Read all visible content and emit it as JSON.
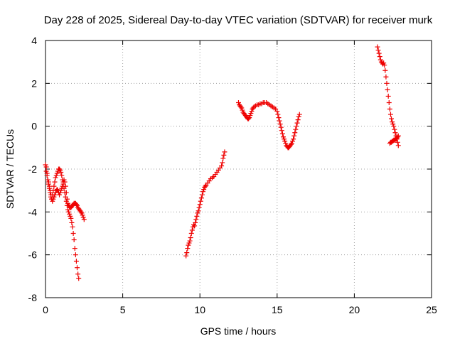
{
  "chart_data": {
    "type": "scatter",
    "title": "Day 228 of 2025, Sidereal Day-to-day VTEC variation (SDTVAR) for receiver murk",
    "xlabel": "GPS time / hours",
    "ylabel": "SDTVAR / TECUs",
    "xlim": [
      0,
      25
    ],
    "ylim": [
      -8,
      4
    ],
    "xticks": [
      "0",
      "5",
      "10",
      "15",
      "20",
      "25"
    ],
    "yticks": [
      "-8",
      "-6",
      "-4",
      "-2",
      "0",
      "2",
      "4"
    ],
    "grid": true,
    "marker": "plus",
    "color": "#ee0000",
    "segments": [
      [
        [
          0.0,
          -1.8
        ],
        [
          0.05,
          -1.9
        ],
        [
          0.1,
          -2.2
        ],
        [
          0.15,
          -2.5
        ],
        [
          0.2,
          -2.7
        ],
        [
          0.25,
          -2.9
        ],
        [
          0.3,
          -3.1
        ],
        [
          0.35,
          -3.3
        ],
        [
          0.4,
          -3.4
        ],
        [
          0.45,
          -3.2
        ],
        [
          0.5,
          -3.0
        ],
        [
          0.55,
          -2.8
        ],
        [
          0.6,
          -2.6
        ],
        [
          0.65,
          -2.4
        ],
        [
          0.7,
          -2.3
        ],
        [
          0.75,
          -2.2
        ],
        [
          0.8,
          -2.1
        ],
        [
          0.85,
          -2.0
        ],
        [
          0.9,
          -2.0
        ],
        [
          0.95,
          -2.05
        ],
        [
          1.0,
          -2.15
        ],
        [
          1.05,
          -2.3
        ],
        [
          1.1,
          -2.5
        ],
        [
          1.15,
          -2.7
        ],
        [
          1.2,
          -2.9
        ],
        [
          1.25,
          -3.1
        ],
        [
          1.3,
          -3.3
        ],
        [
          1.35,
          -3.5
        ],
        [
          1.4,
          -3.7
        ],
        [
          1.45,
          -3.9
        ],
        [
          1.5,
          -4.0
        ],
        [
          1.55,
          -4.1
        ],
        [
          1.6,
          -4.2
        ],
        [
          1.65,
          -4.3
        ],
        [
          1.7,
          -4.5
        ],
        [
          1.75,
          -4.7
        ],
        [
          1.8,
          -5.0
        ],
        [
          1.85,
          -5.3
        ],
        [
          1.9,
          -5.7
        ],
        [
          1.95,
          -6.0
        ],
        [
          2.0,
          -6.3
        ],
        [
          2.05,
          -6.6
        ],
        [
          2.1,
          -6.9
        ],
        [
          2.15,
          -7.1
        ]
      ],
      [
        [
          0.05,
          -2.1
        ],
        [
          0.1,
          -2.3
        ],
        [
          0.15,
          -2.5
        ],
        [
          0.2,
          -2.6
        ],
        [
          0.25,
          -2.8
        ],
        [
          0.3,
          -3.0
        ],
        [
          0.35,
          -3.2
        ],
        [
          0.4,
          -3.4
        ],
        [
          0.45,
          -3.5
        ],
        [
          0.5,
          -3.4
        ],
        [
          0.55,
          -3.3
        ],
        [
          0.6,
          -3.2
        ],
        [
          0.65,
          -3.1
        ],
        [
          0.7,
          -3.0
        ],
        [
          0.75,
          -2.95
        ],
        [
          0.8,
          -3.0
        ],
        [
          0.85,
          -3.1
        ],
        [
          0.9,
          -3.2
        ],
        [
          0.95,
          -3.1
        ],
        [
          1.0,
          -3.0
        ],
        [
          1.05,
          -2.9
        ],
        [
          1.1,
          -2.8
        ],
        [
          1.15,
          -2.6
        ],
        [
          1.2,
          -2.5
        ],
        [
          1.25,
          -2.6
        ],
        [
          1.3,
          -2.8
        ],
        [
          1.35,
          -3.1
        ],
        [
          1.4,
          -3.4
        ],
        [
          1.45,
          -3.6
        ],
        [
          1.5,
          -3.7
        ],
        [
          1.55,
          -3.75
        ],
        [
          1.6,
          -3.8
        ],
        [
          1.65,
          -3.8
        ],
        [
          1.7,
          -3.75
        ],
        [
          1.75,
          -3.7
        ],
        [
          1.8,
          -3.65
        ],
        [
          1.85,
          -3.6
        ],
        [
          1.9,
          -3.6
        ],
        [
          1.95,
          -3.6
        ],
        [
          2.0,
          -3.65
        ],
        [
          2.05,
          -3.7
        ],
        [
          2.1,
          -3.8
        ],
        [
          2.15,
          -3.85
        ],
        [
          2.2,
          -3.9
        ],
        [
          2.25,
          -3.95
        ],
        [
          2.3,
          -4.0
        ],
        [
          2.35,
          -4.05
        ],
        [
          2.4,
          -4.15
        ],
        [
          2.45,
          -4.25
        ],
        [
          2.5,
          -4.35
        ]
      ],
      [
        [
          9.1,
          -6.05
        ],
        [
          9.15,
          -5.9
        ],
        [
          9.2,
          -5.7
        ],
        [
          9.25,
          -5.55
        ],
        [
          9.3,
          -5.45
        ],
        [
          9.35,
          -5.35
        ],
        [
          9.4,
          -5.2
        ],
        [
          9.45,
          -5.0
        ],
        [
          9.5,
          -4.85
        ],
        [
          9.55,
          -4.7
        ],
        [
          9.6,
          -4.6
        ],
        [
          9.65,
          -4.65
        ],
        [
          9.7,
          -4.5
        ],
        [
          9.75,
          -4.35
        ],
        [
          9.8,
          -4.2
        ],
        [
          9.85,
          -4.05
        ],
        [
          9.9,
          -3.95
        ],
        [
          9.95,
          -3.8
        ],
        [
          10.0,
          -3.65
        ],
        [
          10.05,
          -3.5
        ],
        [
          10.1,
          -3.35
        ],
        [
          10.15,
          -3.2
        ],
        [
          10.2,
          -3.05
        ],
        [
          10.25,
          -2.95
        ],
        [
          10.3,
          -2.85
        ],
        [
          10.35,
          -2.8
        ],
        [
          10.4,
          -2.75
        ],
        [
          10.5,
          -2.65
        ],
        [
          10.6,
          -2.55
        ],
        [
          10.7,
          -2.45
        ],
        [
          10.8,
          -2.4
        ],
        [
          10.9,
          -2.35
        ],
        [
          11.0,
          -2.25
        ],
        [
          11.1,
          -2.15
        ],
        [
          11.2,
          -2.05
        ],
        [
          11.3,
          -1.95
        ],
        [
          11.4,
          -1.85
        ],
        [
          11.45,
          -1.7
        ],
        [
          11.5,
          -1.5
        ],
        [
          11.55,
          -1.35
        ],
        [
          11.6,
          -1.2
        ]
      ],
      [
        [
          12.5,
          1.1
        ],
        [
          12.55,
          1.0
        ],
        [
          12.6,
          0.95
        ],
        [
          12.65,
          0.9
        ],
        [
          12.7,
          0.85
        ],
        [
          12.75,
          0.75
        ],
        [
          12.8,
          0.65
        ],
        [
          12.85,
          0.6
        ],
        [
          12.9,
          0.55
        ],
        [
          12.95,
          0.5
        ],
        [
          13.0,
          0.45
        ],
        [
          13.05,
          0.4
        ],
        [
          13.1,
          0.35
        ],
        [
          13.15,
          0.35
        ],
        [
          13.2,
          0.4
        ],
        [
          13.25,
          0.5
        ],
        [
          13.3,
          0.6
        ],
        [
          13.35,
          0.7
        ],
        [
          13.4,
          0.8
        ],
        [
          13.45,
          0.85
        ],
        [
          13.5,
          0.9
        ],
        [
          13.6,
          0.95
        ],
        [
          13.7,
          1.0
        ],
        [
          13.8,
          1.0
        ],
        [
          13.9,
          1.05
        ],
        [
          14.0,
          1.05
        ],
        [
          14.1,
          1.1
        ],
        [
          14.2,
          1.1
        ],
        [
          14.3,
          1.1
        ],
        [
          14.4,
          1.05
        ],
        [
          14.5,
          1.0
        ],
        [
          14.6,
          0.95
        ],
        [
          14.7,
          0.9
        ],
        [
          14.8,
          0.85
        ],
        [
          14.9,
          0.8
        ],
        [
          15.0,
          0.7
        ],
        [
          15.05,
          0.55
        ],
        [
          15.1,
          0.4
        ],
        [
          15.15,
          0.25
        ],
        [
          15.2,
          0.1
        ],
        [
          15.25,
          -0.05
        ],
        [
          15.3,
          -0.2
        ],
        [
          15.35,
          -0.35
        ],
        [
          15.4,
          -0.5
        ],
        [
          15.45,
          -0.6
        ],
        [
          15.5,
          -0.7
        ],
        [
          15.55,
          -0.8
        ],
        [
          15.6,
          -0.9
        ],
        [
          15.65,
          -0.95
        ],
        [
          15.7,
          -1.0
        ],
        [
          15.75,
          -1.0
        ],
        [
          15.8,
          -0.95
        ],
        [
          15.85,
          -0.9
        ],
        [
          15.9,
          -0.85
        ],
        [
          15.95,
          -0.8
        ],
        [
          16.0,
          -0.7
        ],
        [
          16.05,
          -0.6
        ],
        [
          16.1,
          -0.45
        ],
        [
          16.15,
          -0.3
        ],
        [
          16.2,
          -0.15
        ],
        [
          16.25,
          0.0
        ],
        [
          16.3,
          0.15
        ],
        [
          16.35,
          0.3
        ],
        [
          16.4,
          0.45
        ],
        [
          16.45,
          0.55
        ]
      ],
      [
        [
          21.5,
          3.7
        ],
        [
          21.55,
          3.55
        ],
        [
          21.6,
          3.4
        ],
        [
          21.65,
          3.25
        ],
        [
          21.7,
          3.1
        ],
        [
          21.75,
          3.0
        ],
        [
          21.8,
          2.95
        ],
        [
          21.85,
          2.9
        ],
        [
          21.9,
          2.95
        ],
        [
          21.95,
          2.85
        ],
        [
          22.0,
          2.6
        ],
        [
          22.05,
          2.3
        ],
        [
          22.1,
          2.0
        ],
        [
          22.15,
          1.7
        ],
        [
          22.2,
          1.4
        ],
        [
          22.25,
          1.1
        ],
        [
          22.3,
          0.8
        ],
        [
          22.35,
          0.55
        ],
        [
          22.4,
          0.35
        ],
        [
          22.45,
          0.2
        ],
        [
          22.5,
          0.1
        ],
        [
          22.55,
          0.0
        ],
        [
          22.6,
          -0.15
        ],
        [
          22.65,
          -0.3
        ],
        [
          22.7,
          -0.45
        ],
        [
          22.75,
          -0.6
        ],
        [
          22.8,
          -0.75
        ],
        [
          22.85,
          -0.9
        ]
      ],
      [
        [
          22.3,
          -0.8
        ],
        [
          22.35,
          -0.75
        ],
        [
          22.4,
          -0.75
        ],
        [
          22.45,
          -0.7
        ],
        [
          22.5,
          -0.7
        ],
        [
          22.55,
          -0.65
        ],
        [
          22.6,
          -0.65
        ],
        [
          22.65,
          -0.6
        ],
        [
          22.7,
          -0.6
        ],
        [
          22.75,
          -0.55
        ],
        [
          22.8,
          -0.5
        ],
        [
          22.85,
          -0.45
        ]
      ]
    ]
  }
}
